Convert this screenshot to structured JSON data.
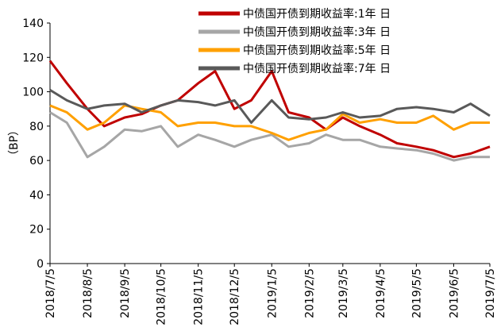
{
  "chart_data": {
    "type": "line",
    "y_label": "（BP）",
    "x": [
      "2018/7/5",
      "2018/7/19",
      "2018/8/5",
      "2018/8/19",
      "2018/9/5",
      "2018/9/19",
      "2018/10/5",
      "2018/10/19",
      "2018/11/5",
      "2018/11/19",
      "2018/12/5",
      "2018/12/19",
      "2019/1/5",
      "2019/1/19",
      "2019/2/5",
      "2019/2/19",
      "2019/3/5",
      "2019/3/19",
      "2019/4/5",
      "2019/4/19",
      "2019/5/5",
      "2019/5/19",
      "2019/6/5",
      "2019/6/19",
      "2019/7/5"
    ],
    "xlim": [
      "2018/7/5",
      "2019/7/5"
    ],
    "xticks": [
      "2018/7/5",
      "2018/8/5",
      "2018/9/5",
      "2018/10/5",
      "2018/11/5",
      "2018/12/5",
      "2019/1/5",
      "2019/2/5",
      "2019/3/5",
      "2019/4/5",
      "2019/5/5",
      "2019/6/5",
      "2019/7/5"
    ],
    "ylim": [
      0,
      140
    ],
    "yticks": [
      0,
      20,
      40,
      60,
      80,
      100,
      120,
      140
    ],
    "series": [
      {
        "name": "中债国开债到期收益率:1年 日",
        "color": "#c00000",
        "values": [
          118,
          105,
          90,
          80,
          85,
          87,
          92,
          95,
          105,
          112,
          90,
          95,
          112,
          88,
          85,
          78,
          85,
          80,
          75,
          70,
          68,
          66,
          62,
          64,
          68
        ]
      },
      {
        "name": "中债国开债到期收益率:3年 日",
        "color": "#a6a6a6",
        "values": [
          88,
          82,
          62,
          68,
          78,
          77,
          80,
          68,
          75,
          72,
          68,
          72,
          75,
          68,
          70,
          75,
          72,
          72,
          68,
          67,
          66,
          64,
          60,
          62,
          62
        ]
      },
      {
        "name": "中债国开债到期收益率:5年 日",
        "color": "#ffa000",
        "values": [
          92,
          88,
          78,
          82,
          92,
          90,
          88,
          80,
          82,
          82,
          80,
          80,
          76,
          72,
          76,
          78,
          87,
          82,
          84,
          82,
          82,
          86,
          78,
          82,
          82
        ]
      },
      {
        "name": "中债国开债到期收益率:7年 日",
        "color": "#595959",
        "values": [
          101,
          95,
          90,
          92,
          93,
          88,
          92,
          95,
          94,
          92,
          95,
          82,
          95,
          85,
          84,
          85,
          88,
          85,
          86,
          90,
          91,
          90,
          88,
          93,
          86
        ]
      }
    ]
  }
}
